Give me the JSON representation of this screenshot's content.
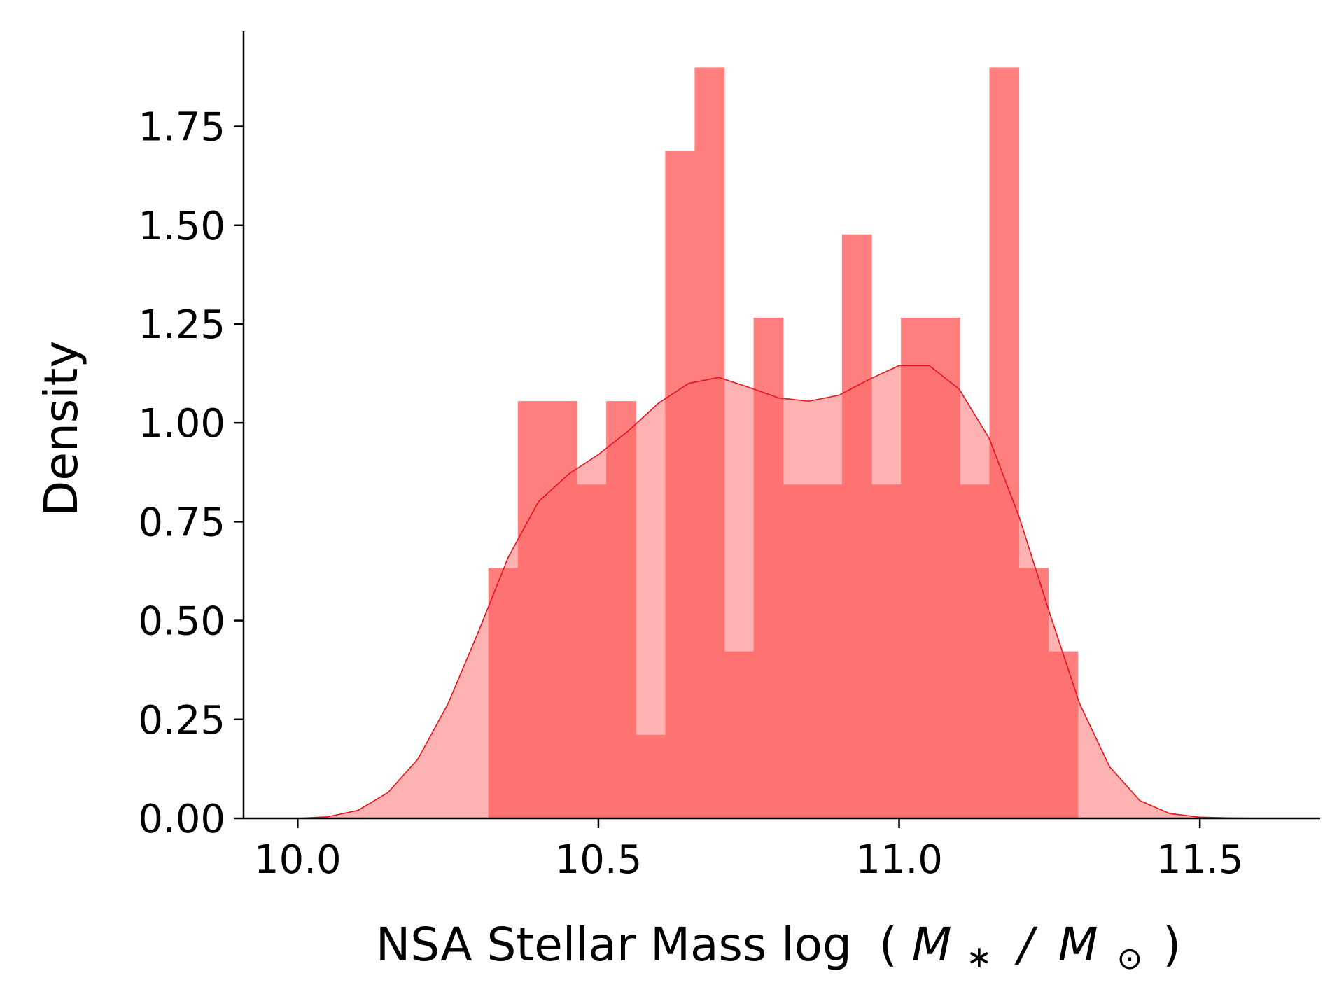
{
  "chart_data": {
    "type": "bar",
    "subtype": "histogram with kde",
    "xlabel": "NSA Stellar Mass log",
    "xlabel_math": {
      "open": "(",
      "M_sub_left": "M",
      "left_sub": "∗",
      "slash": "/",
      "M_sub_right": "M",
      "right_sub": "⊙",
      "close": ")"
    },
    "ylabel": "Density",
    "xlim": [
      9.91,
      11.7
    ],
    "ylim": [
      0,
      1.99
    ],
    "x_ticks": [
      {
        "value": 10.0,
        "label": "10.0"
      },
      {
        "value": 10.5,
        "label": "10.5"
      },
      {
        "value": 11.0,
        "label": "11.0"
      },
      {
        "value": 11.5,
        "label": "11.5"
      }
    ],
    "y_ticks": [
      {
        "value": 0.0,
        "label": "0.00"
      },
      {
        "value": 0.25,
        "label": "0.25"
      },
      {
        "value": 0.5,
        "label": "0.50"
      },
      {
        "value": 0.75,
        "label": "0.75"
      },
      {
        "value": 1.0,
        "label": "1.00"
      },
      {
        "value": 1.25,
        "label": "1.25"
      },
      {
        "value": 1.5,
        "label": "1.50"
      },
      {
        "value": 1.75,
        "label": "1.75"
      }
    ],
    "grid": false,
    "colors": {
      "bar": "#ff7f7f",
      "kde_fill": "#ff6666",
      "kde_fill_opacity": 0.5,
      "kde_line": "#e8121b"
    },
    "histogram": {
      "bin_edges": [
        10.317,
        10.366,
        10.415,
        10.464,
        10.513,
        10.562,
        10.611,
        10.66,
        10.709,
        10.758,
        10.807,
        10.856,
        10.905,
        10.954,
        11.003,
        11.052,
        11.101,
        11.15,
        11.199,
        11.248,
        11.297
      ],
      "values": [
        0.633,
        1.055,
        1.055,
        0.844,
        1.055,
        0.211,
        1.688,
        1.899,
        0.422,
        1.266,
        0.844,
        0.844,
        1.477,
        0.844,
        1.266,
        1.266,
        0.844,
        1.899,
        0.633,
        0.422
      ]
    },
    "kde": {
      "x": [
        10.0,
        10.05,
        10.1,
        10.15,
        10.2,
        10.25,
        10.3,
        10.35,
        10.4,
        10.45,
        10.5,
        10.55,
        10.6,
        10.65,
        10.7,
        10.75,
        10.8,
        10.85,
        10.9,
        10.95,
        11.0,
        11.05,
        11.1,
        11.15,
        11.2,
        11.25,
        11.3,
        11.35,
        11.4,
        11.45,
        11.5,
        11.55,
        11.6
      ],
      "y": [
        0.0,
        0.004,
        0.02,
        0.065,
        0.15,
        0.29,
        0.47,
        0.66,
        0.8,
        0.87,
        0.92,
        0.98,
        1.05,
        1.1,
        1.115,
        1.09,
        1.063,
        1.055,
        1.07,
        1.11,
        1.145,
        1.145,
        1.085,
        0.96,
        0.76,
        0.52,
        0.29,
        0.13,
        0.045,
        0.012,
        0.003,
        0.001,
        0.0
      ]
    }
  }
}
